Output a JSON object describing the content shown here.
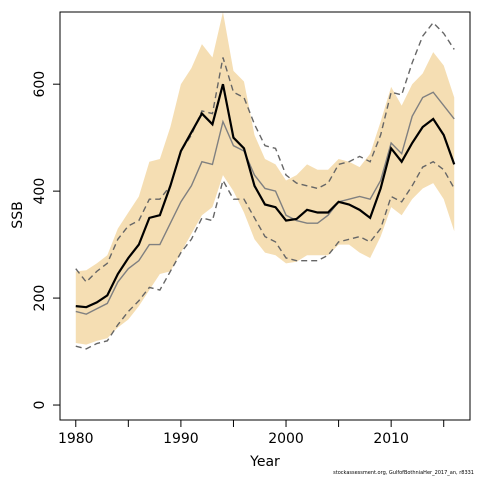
{
  "chart_data": {
    "type": "line",
    "xlabel": "Year",
    "ylabel": "SSB",
    "xlim": [
      1978.5,
      2017.5
    ],
    "ylim": [
      -28,
      735
    ],
    "x_ticks": [
      1980,
      1990,
      2000,
      2010
    ],
    "x_minor_ticks": [
      1985,
      1995,
      2005,
      2015
    ],
    "y_ticks": [
      0,
      200,
      400,
      600
    ],
    "grid": false,
    "years": [
      1980,
      1981,
      1982,
      1983,
      1984,
      1985,
      1986,
      1987,
      1988,
      1989,
      1990,
      1991,
      1992,
      1993,
      1994,
      1995,
      1996,
      1997,
      1998,
      1999,
      2000,
      2001,
      2002,
      2003,
      2004,
      2005,
      2006,
      2007,
      2008,
      2009,
      2010,
      2011,
      2012,
      2013,
      2014,
      2015,
      2016
    ],
    "series": [
      {
        "role": "band",
        "lower": [
          116,
          113,
          120,
          125,
          145,
          160,
          185,
          215,
          245,
          250,
          285,
          320,
          355,
          370,
          430,
          400,
          360,
          310,
          285,
          280,
          265,
          268,
          280,
          280,
          280,
          300,
          300,
          285,
          275,
          315,
          370,
          355,
          385,
          405,
          415,
          385,
          325
        ],
        "upper": [
          250,
          252,
          265,
          280,
          330,
          360,
          390,
          455,
          460,
          520,
          600,
          630,
          675,
          650,
          735,
          625,
          605,
          505,
          460,
          450,
          420,
          430,
          450,
          440,
          440,
          460,
          455,
          445,
          470,
          530,
          595,
          560,
          600,
          620,
          660,
          635,
          575
        ],
        "color": "#f5deb3"
      },
      {
        "role": "dashed_lower",
        "values": [
          110,
          105,
          115,
          120,
          150,
          175,
          195,
          220,
          215,
          250,
          285,
          310,
          350,
          345,
          420,
          385,
          385,
          350,
          315,
          305,
          275,
          270,
          270,
          270,
          280,
          305,
          310,
          315,
          305,
          330,
          390,
          380,
          410,
          445,
          455,
          440,
          405
        ],
        "color": "#666666"
      },
      {
        "role": "dashed_upper",
        "values": [
          255,
          230,
          250,
          265,
          310,
          335,
          345,
          385,
          385,
          410,
          475,
          505,
          550,
          545,
          650,
          585,
          575,
          525,
          485,
          480,
          430,
          415,
          410,
          405,
          415,
          450,
          455,
          465,
          455,
          505,
          585,
          580,
          640,
          690,
          715,
          695,
          665
        ],
        "color": "#666666"
      },
      {
        "role": "grey_line",
        "values": [
          175,
          170,
          180,
          190,
          230,
          255,
          270,
          300,
          300,
          340,
          380,
          410,
          455,
          450,
          530,
          485,
          475,
          430,
          405,
          400,
          355,
          345,
          340,
          340,
          355,
          380,
          385,
          390,
          385,
          420,
          490,
          470,
          540,
          575,
          585,
          560,
          535
        ],
        "color": "#808080"
      },
      {
        "role": "black_line",
        "values": [
          185,
          183,
          192,
          205,
          245,
          275,
          300,
          350,
          355,
          410,
          475,
          510,
          545,
          525,
          600,
          500,
          480,
          410,
          375,
          370,
          345,
          348,
          365,
          360,
          360,
          380,
          375,
          365,
          350,
          405,
          480,
          455,
          490,
          520,
          535,
          505,
          450
        ],
        "color": "#000000"
      }
    ]
  },
  "footer": {
    "text": "stockassessment.org, GulfofBothniaHer_2017_an, r8331"
  }
}
